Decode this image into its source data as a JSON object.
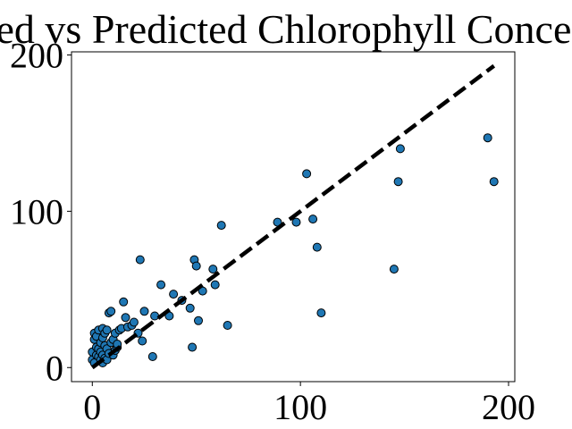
{
  "chart_data": {
    "type": "scatter",
    "title": "Measured vs Predicted Chlorophyll Concentration",
    "xlabel": "",
    "ylabel": "",
    "xlim": [
      -10,
      203
    ],
    "ylim": [
      -9,
      202
    ],
    "xticks": [
      0,
      100,
      200
    ],
    "yticks": [
      0,
      100,
      200
    ],
    "grid": false,
    "legend": "none",
    "colors": {
      "point_fill": "#1f77b4",
      "point_edge": "#000000",
      "line": "#000000"
    },
    "reference_line": {
      "style": "dashed",
      "x": [
        0,
        193
      ],
      "y": [
        0,
        193
      ]
    },
    "series": [
      {
        "x": [
          0,
          0,
          1,
          1,
          1,
          2,
          2,
          2,
          3,
          3,
          3,
          4,
          4,
          4,
          5,
          5,
          5,
          5,
          6,
          6,
          6,
          7,
          7,
          7,
          8,
          8,
          9,
          9,
          10,
          10,
          11,
          11,
          12,
          12,
          13,
          14,
          15,
          16,
          17,
          19,
          20,
          22,
          23,
          24,
          25,
          29,
          30,
          33,
          37,
          39,
          43,
          47,
          48,
          49,
          50,
          51,
          53,
          58,
          59,
          62,
          65,
          89,
          98,
          103,
          106,
          108,
          110,
          145,
          147,
          148,
          190,
          193
        ],
        "y": [
          5,
          10,
          18,
          22,
          3,
          8,
          13,
          20,
          7,
          12,
          24,
          5,
          10,
          16,
          3,
          8,
          19,
          25,
          6,
          14,
          22,
          5,
          12,
          24,
          9,
          35,
          16,
          36,
          8,
          18,
          11,
          22,
          13,
          15,
          24,
          25,
          42,
          32,
          26,
          27,
          29,
          22,
          69,
          17,
          36,
          7,
          33,
          53,
          33,
          47,
          43,
          38,
          13,
          69,
          65,
          30,
          49,
          63,
          53,
          91,
          27,
          93,
          93,
          124,
          95,
          77,
          35,
          63,
          119,
          140,
          147,
          119
        ]
      }
    ]
  }
}
